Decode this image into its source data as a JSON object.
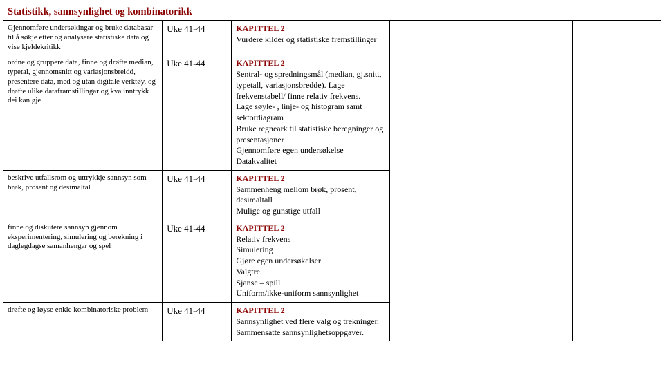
{
  "header": {
    "title": "Statistikk, sannsynlighet og kombinatorikk"
  },
  "rows": [
    {
      "goal": "Gjennomføre undersøkingar og bruke databasar til å søkje etter og analysere statistiske data og vise kjeldekritikk",
      "week": "Uke 41-44",
      "chapterTitle": "KAPITTEL 2",
      "chapterBody": "Vurdere kilder og statistiske fremstillinger"
    },
    {
      "goal": "ordne og gruppere data, finne og drøfte median, typetal, gjennomsnitt og variasjonsbreidd, presentere data, med og utan digitale verktøy, og drøfte ulike dataframstillingar og kva inntrykk dei kan gje",
      "week": "Uke 41-44",
      "chapterTitle": "KAPITTEL 2",
      "chapterBody": "Sentral- og spredningsmål (median, gj.snitt, typetall, variasjonsbredde). Lage frekvenstabell/ finne relativ frekvens.\nLage søyle- , linje- og histogram samt sektordiagram\nBruke regneark til statistiske beregninger og presentasjoner\nGjennomføre egen undersøkelse\nDatakvalitet"
    },
    {
      "goal": "beskrive utfallsrom og uttrykkje sannsyn som brøk, prosent og desimaltal",
      "week": "Uke 41-44",
      "chapterTitle": "KAPITTEL 2",
      "chapterBody": "Sammenheng mellom brøk, prosent, desimaltall\nMulige og gunstige utfall"
    },
    {
      "goal": "finne og diskutere sannsyn gjennom eksperimentering, simulering og berekning i daglegdagse samanhengar og spel",
      "week": "Uke 41-44",
      "chapterTitle": "KAPITTEL 2",
      "chapterBody": "Relativ frekvens\nSimulering\nGjøre egen undersøkelser\nValgtre\nSjanse – spill\nUniform/ikke-uniform sannsynlighet"
    },
    {
      "goal": "drøfte og løyse enkle kombinatoriske problem",
      "week": "Uke 41-44",
      "chapterTitle": "KAPITTEL 2",
      "chapterBody": "Sannsynlighet ved flere valg og trekninger. Sammensatte sannsynlighetsoppgaver."
    }
  ]
}
